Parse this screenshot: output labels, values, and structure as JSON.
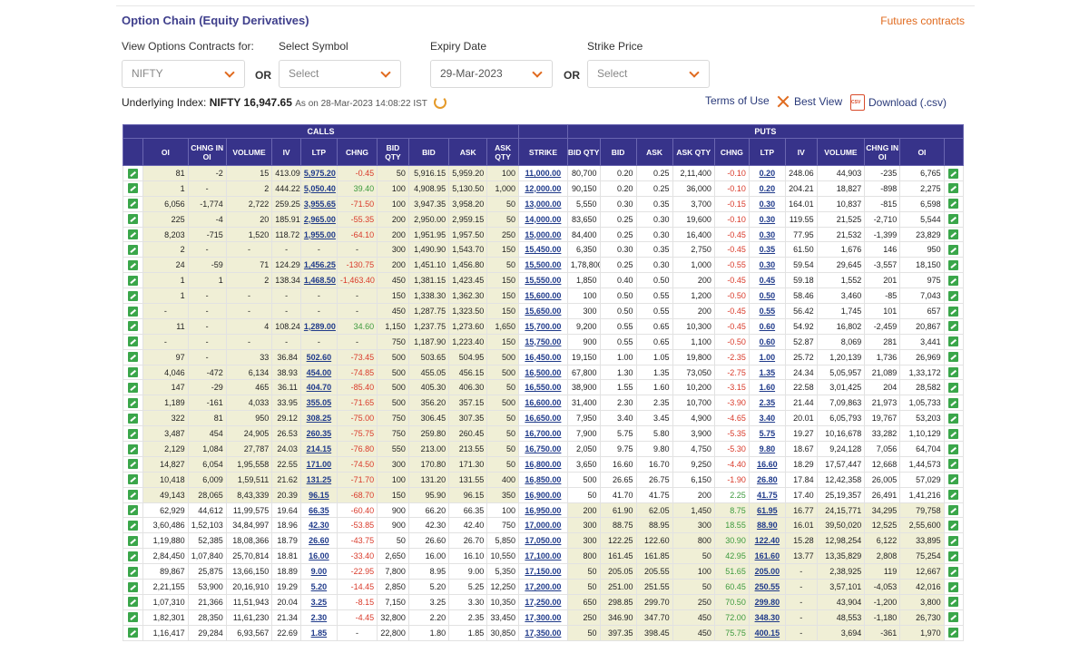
{
  "header": {
    "title": "Option Chain (Equity Derivatives)",
    "futures_link": "Futures contracts"
  },
  "filters": {
    "view_label": "View Options Contracts for:",
    "view_value": "NIFTY",
    "or1": "OR",
    "symbol_label": "Select Symbol",
    "symbol_value": "Select",
    "expiry_label": "Expiry Date",
    "expiry_value": "29-Mar-2023",
    "or2": "OR",
    "strike_label": "Strike Price",
    "strike_value": "Select"
  },
  "underlying": {
    "label": "Underlying Index:",
    "name_value": "NIFTY 16,947.65",
    "as_on": "As on 28-Mar-2023 14:08:22 IST"
  },
  "tools": {
    "terms": "Terms of Use",
    "best_view": "Best View",
    "download": "Download (.csv)"
  },
  "table": {
    "group_calls": "CALLS",
    "group_puts": "PUTS",
    "columns": [
      "OI",
      "CHNG IN OI",
      "VOLUME",
      "IV",
      "LTP",
      "CHNG",
      "BID QTY",
      "BID",
      "ASK",
      "ASK QTY",
      "STRIKE",
      "BID QTY",
      "BID",
      "ASK",
      "ASK QTY",
      "CHNG",
      "LTP",
      "IV",
      "VOLUME",
      "CHNG IN OI",
      "OI"
    ],
    "rows": [
      [
        "81",
        "-2",
        "15",
        "413.09",
        "5,975.20",
        "-0.45",
        "50",
        "5,916.15",
        "5,959.20",
        "100",
        "11,000.00",
        "80,700",
        "0.20",
        "0.25",
        "2,11,400",
        "-0.10",
        "0.20",
        "248.06",
        "44,903",
        "-235",
        "6,765"
      ],
      [
        "1",
        "-",
        "2",
        "444.22",
        "5,050.40",
        "39.40",
        "100",
        "4,908.95",
        "5,130.50",
        "1,000",
        "12,000.00",
        "90,150",
        "0.20",
        "0.25",
        "36,000",
        "-0.10",
        "0.20",
        "204.21",
        "18,827",
        "-898",
        "2,275"
      ],
      [
        "6,056",
        "-1,774",
        "2,722",
        "259.25",
        "3,955.65",
        "-71.50",
        "100",
        "3,947.35",
        "3,958.20",
        "50",
        "13,000.00",
        "5,550",
        "0.30",
        "0.35",
        "3,700",
        "-0.15",
        "0.30",
        "164.01",
        "10,837",
        "-815",
        "6,598"
      ],
      [
        "225",
        "-4",
        "20",
        "185.91",
        "2,965.00",
        "-55.35",
        "200",
        "2,950.00",
        "2,959.15",
        "50",
        "14,000.00",
        "83,650",
        "0.25",
        "0.30",
        "19,600",
        "-0.10",
        "0.30",
        "119.55",
        "21,525",
        "-2,710",
        "5,544"
      ],
      [
        "8,203",
        "-715",
        "1,520",
        "118.72",
        "1,955.00",
        "-64.10",
        "200",
        "1,951.95",
        "1,957.50",
        "250",
        "15,000.00",
        "84,400",
        "0.25",
        "0.30",
        "16,400",
        "-0.45",
        "0.30",
        "77.95",
        "21,532",
        "-1,399",
        "23,829"
      ],
      [
        "2",
        "-",
        "-",
        "-",
        "-",
        "-",
        "300",
        "1,490.90",
        "1,543.70",
        "150",
        "15,450.00",
        "6,350",
        "0.30",
        "0.35",
        "2,750",
        "-0.45",
        "0.35",
        "61.50",
        "1,676",
        "146",
        "950"
      ],
      [
        "24",
        "-59",
        "71",
        "124.29",
        "1,456.25",
        "-130.75",
        "200",
        "1,451.10",
        "1,456.80",
        "50",
        "15,500.00",
        "1,78,800",
        "0.25",
        "0.30",
        "1,000",
        "-0.55",
        "0.30",
        "59.54",
        "29,645",
        "-3,557",
        "18,150"
      ],
      [
        "1",
        "1",
        "2",
        "138.34",
        "1,468.50",
        "-1,463.40",
        "450",
        "1,381.15",
        "1,423.45",
        "150",
        "15,550.00",
        "1,850",
        "0.40",
        "0.50",
        "200",
        "-0.45",
        "0.45",
        "59.18",
        "1,552",
        "201",
        "975"
      ],
      [
        "1",
        "-",
        "-",
        "-",
        "-",
        "-",
        "150",
        "1,338.30",
        "1,362.30",
        "150",
        "15,600.00",
        "100",
        "0.50",
        "0.55",
        "1,200",
        "-0.50",
        "0.50",
        "58.46",
        "3,460",
        "-85",
        "7,043"
      ],
      [
        "-",
        "-",
        "-",
        "-",
        "-",
        "-",
        "450",
        "1,287.75",
        "1,323.50",
        "150",
        "15,650.00",
        "300",
        "0.50",
        "0.55",
        "200",
        "-0.45",
        "0.55",
        "56.42",
        "1,745",
        "101",
        "657"
      ],
      [
        "11",
        "-",
        "4",
        "108.24",
        "1,289.00",
        "34.60",
        "1,150",
        "1,237.75",
        "1,273.60",
        "1,650",
        "15,700.00",
        "9,200",
        "0.55",
        "0.65",
        "10,300",
        "-0.45",
        "0.60",
        "54.92",
        "16,802",
        "-2,459",
        "20,867"
      ],
      [
        "-",
        "-",
        "-",
        "-",
        "-",
        "-",
        "750",
        "1,187.90",
        "1,223.40",
        "150",
        "15,750.00",
        "900",
        "0.55",
        "0.65",
        "1,100",
        "-0.50",
        "0.60",
        "52.87",
        "8,069",
        "281",
        "3,441"
      ],
      [
        "97",
        "-",
        "33",
        "36.84",
        "502.60",
        "-73.45",
        "500",
        "503.65",
        "504.95",
        "500",
        "16,450.00",
        "19,150",
        "1.00",
        "1.05",
        "19,800",
        "-2.35",
        "1.00",
        "25.72",
        "1,20,139",
        "1,736",
        "26,969"
      ],
      [
        "4,046",
        "-472",
        "6,134",
        "38.93",
        "454.00",
        "-74.85",
        "500",
        "455.05",
        "456.15",
        "500",
        "16,500.00",
        "67,800",
        "1.30",
        "1.35",
        "73,050",
        "-2.75",
        "1.35",
        "24.34",
        "5,05,957",
        "21,089",
        "1,33,172"
      ],
      [
        "147",
        "-29",
        "465",
        "36.11",
        "404.70",
        "-85.40",
        "500",
        "405.30",
        "406.30",
        "50",
        "16,550.00",
        "38,900",
        "1.55",
        "1.60",
        "10,200",
        "-3.15",
        "1.60",
        "22.58",
        "3,01,425",
        "204",
        "28,582"
      ],
      [
        "1,189",
        "-161",
        "4,033",
        "33.95",
        "355.05",
        "-71.65",
        "500",
        "356.20",
        "357.15",
        "500",
        "16,600.00",
        "31,400",
        "2.30",
        "2.35",
        "10,700",
        "-3.90",
        "2.35",
        "21.44",
        "7,09,863",
        "21,973",
        "1,05,733"
      ],
      [
        "322",
        "81",
        "950",
        "29.12",
        "308.25",
        "-75.00",
        "750",
        "306.45",
        "307.35",
        "50",
        "16,650.00",
        "7,950",
        "3.40",
        "3.45",
        "4,900",
        "-4.65",
        "3.40",
        "20.01",
        "6,05,793",
        "19,767",
        "53,203"
      ],
      [
        "3,487",
        "454",
        "24,905",
        "26.53",
        "260.35",
        "-75.75",
        "750",
        "259.80",
        "260.45",
        "50",
        "16,700.00",
        "7,900",
        "5.75",
        "5.80",
        "3,900",
        "-5.35",
        "5.75",
        "19.27",
        "10,16,678",
        "33,282",
        "1,10,129"
      ],
      [
        "2,129",
        "1,084",
        "27,787",
        "24.03",
        "214.15",
        "-76.80",
        "550",
        "213.00",
        "213.55",
        "50",
        "16,750.00",
        "2,050",
        "9.75",
        "9.80",
        "4,750",
        "-5.30",
        "9.80",
        "18.67",
        "9,24,128",
        "7,056",
        "64,704"
      ],
      [
        "14,827",
        "6,054",
        "1,95,558",
        "22.55",
        "171.00",
        "-74.50",
        "300",
        "170.80",
        "171.30",
        "50",
        "16,800.00",
        "3,650",
        "16.60",
        "16.70",
        "9,250",
        "-4.40",
        "16.60",
        "18.29",
        "17,57,447",
        "12,668",
        "1,44,573"
      ],
      [
        "10,418",
        "6,009",
        "1,59,511",
        "21.62",
        "131.25",
        "-71.70",
        "100",
        "131.20",
        "131.55",
        "400",
        "16,850.00",
        "500",
        "26.65",
        "26.75",
        "6,150",
        "-1.90",
        "26.80",
        "17.84",
        "12,42,358",
        "26,005",
        "57,029"
      ],
      [
        "49,143",
        "28,065",
        "8,43,339",
        "20.39",
        "96.15",
        "-68.70",
        "150",
        "95.90",
        "96.15",
        "350",
        "16,900.00",
        "50",
        "41.70",
        "41.75",
        "200",
        "2.25",
        "41.75",
        "17.40",
        "25,19,357",
        "26,491",
        "1,41,216"
      ],
      [
        "62,929",
        "44,612",
        "11,99,575",
        "19.64",
        "66.35",
        "-60.40",
        "900",
        "66.20",
        "66.35",
        "100",
        "16,950.00",
        "200",
        "61.90",
        "62.05",
        "1,450",
        "8.75",
        "61.95",
        "16.77",
        "24,15,771",
        "34,295",
        "79,758"
      ],
      [
        "3,60,486",
        "1,52,103",
        "34,84,997",
        "18.96",
        "42.30",
        "-53.85",
        "900",
        "42.30",
        "42.40",
        "750",
        "17,000.00",
        "300",
        "88.75",
        "88.95",
        "300",
        "18.55",
        "88.90",
        "16.01",
        "39,50,020",
        "12,525",
        "2,55,600"
      ],
      [
        "1,19,880",
        "52,385",
        "18,08,366",
        "18.79",
        "26.60",
        "-43.75",
        "50",
        "26.60",
        "26.70",
        "5,850",
        "17,050.00",
        "300",
        "122.25",
        "122.60",
        "800",
        "30.90",
        "122.40",
        "15.28",
        "12,98,254",
        "6,122",
        "33,895"
      ],
      [
        "2,84,450",
        "1,07,840",
        "25,70,814",
        "18.81",
        "16.00",
        "-33.40",
        "2,650",
        "16.00",
        "16.10",
        "10,550",
        "17,100.00",
        "800",
        "161.45",
        "161.85",
        "50",
        "42.95",
        "161.60",
        "13.77",
        "13,35,829",
        "2,808",
        "75,254"
      ],
      [
        "89,867",
        "25,875",
        "13,66,150",
        "18.89",
        "9.00",
        "-22.95",
        "7,800",
        "8.95",
        "9.00",
        "5,350",
        "17,150.00",
        "50",
        "205.05",
        "205.55",
        "100",
        "51.65",
        "205.00",
        "-",
        "2,38,925",
        "119",
        "12,667"
      ],
      [
        "2,21,155",
        "53,900",
        "20,16,910",
        "19.29",
        "5.20",
        "-14.45",
        "2,850",
        "5.20",
        "5.25",
        "12,250",
        "17,200.00",
        "50",
        "251.00",
        "251.55",
        "50",
        "60.45",
        "250.55",
        "-",
        "3,57,101",
        "-4,053",
        "42,016"
      ],
      [
        "1,07,310",
        "21,366",
        "11,51,943",
        "20.04",
        "3.25",
        "-8.15",
        "7,150",
        "3.25",
        "3.30",
        "10,350",
        "17,250.00",
        "650",
        "298.85",
        "299.70",
        "250",
        "70.50",
        "299.80",
        "-",
        "43,904",
        "-1,200",
        "3,800"
      ],
      [
        "1,82,301",
        "28,350",
        "11,61,230",
        "21.34",
        "2.30",
        "-4.45",
        "32,800",
        "2.20",
        "2.35",
        "33,450",
        "17,300.00",
        "250",
        "346.90",
        "347.70",
        "450",
        "72.00",
        "348.30",
        "-",
        "48,553",
        "-1,180",
        "26,730"
      ],
      [
        "1,16,417",
        "29,284",
        "6,93,567",
        "22.69",
        "1.85",
        "-",
        "22,800",
        "1.80",
        "1.85",
        "30,850",
        "17,350.00",
        "50",
        "397.35",
        "398.45",
        "450",
        "75.75",
        "400.15",
        "-",
        "3,694",
        "-361",
        "1,970"
      ]
    ]
  }
}
